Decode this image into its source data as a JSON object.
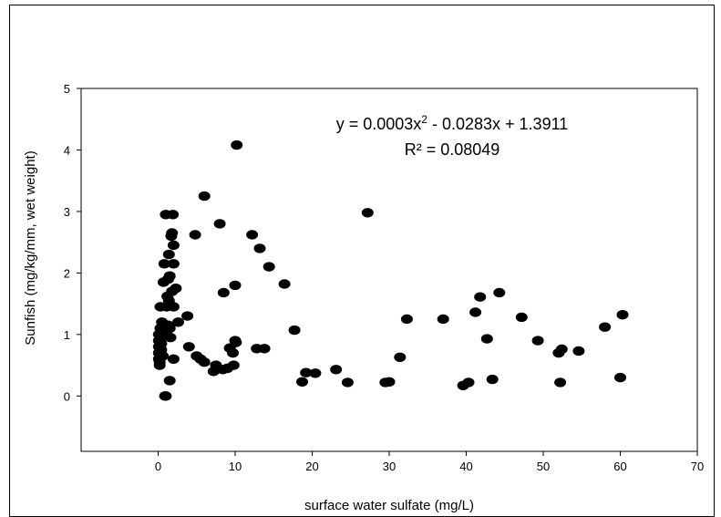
{
  "chart_data": {
    "type": "scatter",
    "title": "",
    "xlabel": "surface water sulfate (mg/L)",
    "ylabel": "Sunfish (mg/kg/mm, wet weight)",
    "xlim": [
      -10,
      70
    ],
    "ylim": [
      -0.9,
      5
    ],
    "xticks": [
      "0",
      "10",
      "20",
      "30",
      "40",
      "50",
      "60",
      "70"
    ],
    "yticks": [
      "0",
      "1",
      "2",
      "3",
      "4",
      "5"
    ],
    "grid": false,
    "equation": {
      "lead": "y = 0.0003x",
      "exponent": "2",
      "tail": " - 0.0283x + 1.3911",
      "r2": "R² = 0.08049"
    },
    "points": [
      [
        0.1,
        0.9
      ],
      [
        0.1,
        0.8
      ],
      [
        0.1,
        0.7
      ],
      [
        0.1,
        0.6
      ],
      [
        0.1,
        1.0
      ],
      [
        0.2,
        0.5
      ],
      [
        0.2,
        0.55
      ],
      [
        0.3,
        0.95
      ],
      [
        0.3,
        1.1
      ],
      [
        0.3,
        1.45
      ],
      [
        0.4,
        0.85
      ],
      [
        0.4,
        0.75
      ],
      [
        0.5,
        1.2
      ],
      [
        0.5,
        1.0
      ],
      [
        0.6,
        1.05
      ],
      [
        0.6,
        0.65
      ],
      [
        0.7,
        1.85
      ],
      [
        0.8,
        2.15
      ],
      [
        0.9,
        1.15
      ],
      [
        1.0,
        2.95
      ],
      [
        0.9,
        0.0
      ],
      [
        1.0,
        0.0
      ],
      [
        1.1,
        1.45
      ],
      [
        1.2,
        1.62
      ],
      [
        1.3,
        1.9
      ],
      [
        1.3,
        1.15
      ],
      [
        1.4,
        2.3
      ],
      [
        1.4,
        1.55
      ],
      [
        1.5,
        0.25
      ],
      [
        1.5,
        1.1
      ],
      [
        1.5,
        1.95
      ],
      [
        1.6,
        0.95
      ],
      [
        1.7,
        2.6
      ],
      [
        1.8,
        2.65
      ],
      [
        1.8,
        1.7
      ],
      [
        1.9,
        2.95
      ],
      [
        2.0,
        2.45
      ],
      [
        2.0,
        1.45
      ],
      [
        2.0,
        2.15
      ],
      [
        2.0,
        0.6
      ],
      [
        2.3,
        1.75
      ],
      [
        2.6,
        1.2
      ],
      [
        3.8,
        1.3
      ],
      [
        4.0,
        0.8
      ],
      [
        4.8,
        2.62
      ],
      [
        5.0,
        0.65
      ],
      [
        5.5,
        0.6
      ],
      [
        6.0,
        0.55
      ],
      [
        6.0,
        3.25
      ],
      [
        7.2,
        0.4
      ],
      [
        7.5,
        0.5
      ],
      [
        8.0,
        2.8
      ],
      [
        8.4,
        0.43
      ],
      [
        8.5,
        1.68
      ],
      [
        9.0,
        0.45
      ],
      [
        9.3,
        0.78
      ],
      [
        9.7,
        0.7
      ],
      [
        9.8,
        0.5
      ],
      [
        10.0,
        1.8
      ],
      [
        10.0,
        0.9
      ],
      [
        10.1,
        0.87
      ],
      [
        10.2,
        4.08
      ],
      [
        12.2,
        2.62
      ],
      [
        12.8,
        0.77
      ],
      [
        13.2,
        2.4
      ],
      [
        13.8,
        0.77
      ],
      [
        14.4,
        2.1
      ],
      [
        16.4,
        1.82
      ],
      [
        17.7,
        1.07
      ],
      [
        18.7,
        0.23
      ],
      [
        19.2,
        0.38
      ],
      [
        20.4,
        0.37
      ],
      [
        23.1,
        0.43
      ],
      [
        24.6,
        0.22
      ],
      [
        27.2,
        2.98
      ],
      [
        29.5,
        0.22
      ],
      [
        30.0,
        0.23
      ],
      [
        31.4,
        0.63
      ],
      [
        32.3,
        1.25
      ],
      [
        37.0,
        1.25
      ],
      [
        39.6,
        0.17
      ],
      [
        40.3,
        0.22
      ],
      [
        41.2,
        1.36
      ],
      [
        41.8,
        1.61
      ],
      [
        42.7,
        0.93
      ],
      [
        43.4,
        0.27
      ],
      [
        44.3,
        1.68
      ],
      [
        47.2,
        1.28
      ],
      [
        49.3,
        0.9
      ],
      [
        52.0,
        0.7
      ],
      [
        52.2,
        0.22
      ],
      [
        52.4,
        0.76
      ],
      [
        54.6,
        0.73
      ],
      [
        58.0,
        1.12
      ],
      [
        60.0,
        0.3
      ],
      [
        60.3,
        1.32
      ]
    ]
  }
}
